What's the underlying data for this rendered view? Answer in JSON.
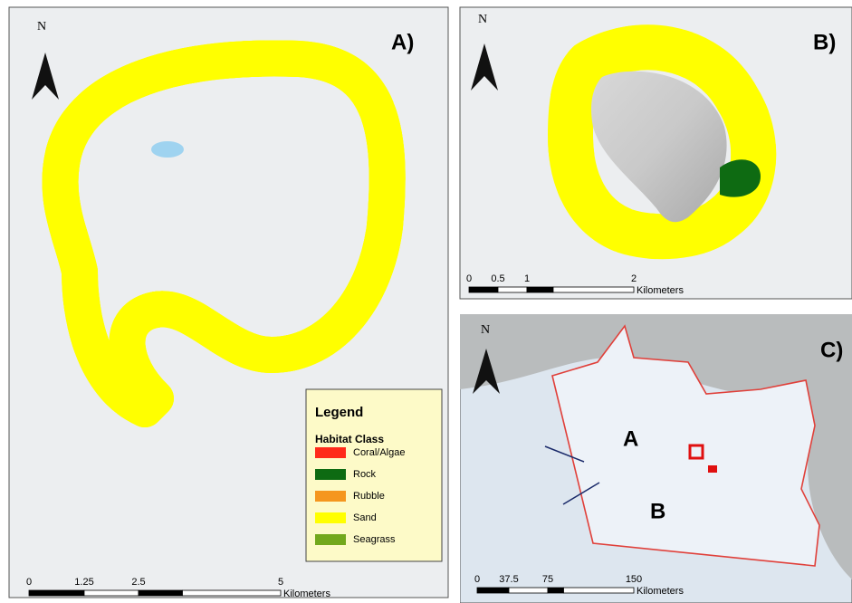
{
  "panels": [
    {
      "label": "A)",
      "north": "N",
      "scale": {
        "ticks": [
          "0",
          "1.25",
          "2.5",
          "5"
        ],
        "unit": "Kilometers"
      }
    },
    {
      "label": "B)",
      "north": "N",
      "scale": {
        "ticks": [
          "0",
          "0.5",
          "1",
          "2"
        ],
        "unit": "Kilometers"
      }
    },
    {
      "label": "C)",
      "north": "N",
      "scale": {
        "ticks": [
          "0",
          "37.5",
          "75",
          "150"
        ],
        "unit": "Kilometers"
      },
      "site_labels": [
        "A",
        "B"
      ]
    }
  ],
  "legend": {
    "title": "Legend",
    "subtitle": "Habitat Class",
    "classes": [
      {
        "name": "Coral/Algae",
        "color": "#ff2a1a"
      },
      {
        "name": "Rock",
        "color": "#0e6b12"
      },
      {
        "name": "Rubble",
        "color": "#f5961e"
      },
      {
        "name": "Sand",
        "color": "#ffff00"
      },
      {
        "name": "Seagrass",
        "color": "#72a81c"
      }
    ]
  }
}
